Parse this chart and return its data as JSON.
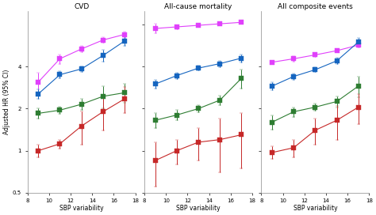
{
  "panels": [
    {
      "title": "CVD",
      "series": [
        {
          "color": "#e040fb",
          "x": [
            9,
            11,
            13,
            15,
            17
          ],
          "y": [
            3.1,
            4.55,
            5.35,
            6.2,
            6.8
          ],
          "yerr_lo": [
            0.5,
            0.35,
            0.25,
            0.3,
            0.35
          ],
          "yerr_hi": [
            0.5,
            0.35,
            0.25,
            0.3,
            0.35
          ]
        },
        {
          "color": "#1565c0",
          "x": [
            9,
            11,
            13,
            15,
            17
          ],
          "y": [
            2.55,
            3.5,
            3.85,
            4.8,
            6.1
          ],
          "yerr_lo": [
            0.2,
            0.2,
            0.18,
            0.45,
            0.45
          ],
          "yerr_hi": [
            0.2,
            0.2,
            0.18,
            0.45,
            0.45
          ]
        },
        {
          "color": "#2e7d32",
          "x": [
            9,
            11,
            13,
            15,
            17
          ],
          "y": [
            1.85,
            1.95,
            2.15,
            2.45,
            2.6
          ],
          "yerr_lo": [
            0.15,
            0.12,
            0.2,
            0.45,
            0.4
          ],
          "yerr_hi": [
            0.15,
            0.12,
            0.2,
            0.45,
            0.4
          ]
        },
        {
          "color": "#c62828",
          "x": [
            9,
            11,
            13,
            15,
            17
          ],
          "y": [
            1.0,
            1.12,
            1.5,
            1.9,
            2.35
          ],
          "yerr_lo": [
            0.1,
            0.08,
            0.4,
            0.5,
            0.5
          ],
          "yerr_hi": [
            0.1,
            0.08,
            0.4,
            0.5,
            0.5
          ]
        }
      ]
    },
    {
      "title": "All-cause mortality",
      "series": [
        {
          "color": "#e040fb",
          "x": [
            9,
            11,
            13,
            15,
            17
          ],
          "y": [
            7.5,
            7.7,
            7.9,
            8.1,
            8.3
          ],
          "yerr_lo": [
            0.6,
            0.25,
            0.18,
            0.18,
            0.2
          ],
          "yerr_hi": [
            0.6,
            0.25,
            0.18,
            0.18,
            0.2
          ]
        },
        {
          "color": "#1565c0",
          "x": [
            9,
            11,
            13,
            15,
            17
          ],
          "y": [
            3.0,
            3.45,
            3.9,
            4.2,
            4.6
          ],
          "yerr_lo": [
            0.2,
            0.18,
            0.15,
            0.22,
            0.3
          ],
          "yerr_hi": [
            0.2,
            0.18,
            0.15,
            0.22,
            0.3
          ]
        },
        {
          "color": "#2e7d32",
          "x": [
            9,
            11,
            13,
            15,
            17
          ],
          "y": [
            1.65,
            1.8,
            2.0,
            2.3,
            3.3
          ],
          "yerr_lo": [
            0.2,
            0.15,
            0.12,
            0.18,
            0.5
          ],
          "yerr_hi": [
            0.2,
            0.15,
            0.12,
            0.18,
            0.5
          ]
        },
        {
          "color": "#c62828",
          "x": [
            9,
            11,
            13,
            15,
            17
          ],
          "y": [
            0.85,
            1.0,
            1.15,
            1.2,
            1.3
          ],
          "yerr_lo": [
            0.3,
            0.2,
            0.3,
            0.5,
            0.55
          ],
          "yerr_hi": [
            0.3,
            0.2,
            0.3,
            0.5,
            0.55
          ]
        }
      ]
    },
    {
      "title": "All composite events",
      "series": [
        {
          "color": "#e040fb",
          "x": [
            9,
            11,
            13,
            15,
            17
          ],
          "y": [
            4.3,
            4.55,
            4.85,
            5.2,
            5.7
          ],
          "yerr_lo": [
            0.12,
            0.2,
            0.15,
            0.15,
            0.2
          ],
          "yerr_hi": [
            0.12,
            0.2,
            0.15,
            0.15,
            0.2
          ]
        },
        {
          "color": "#1565c0",
          "x": [
            9,
            11,
            13,
            15,
            17
          ],
          "y": [
            2.9,
            3.4,
            3.8,
            4.4,
            6.0
          ],
          "yerr_lo": [
            0.18,
            0.18,
            0.15,
            0.25,
            0.45
          ],
          "yerr_hi": [
            0.18,
            0.18,
            0.15,
            0.25,
            0.45
          ]
        },
        {
          "color": "#2e7d32",
          "x": [
            9,
            11,
            13,
            15,
            17
          ],
          "y": [
            1.6,
            1.9,
            2.05,
            2.25,
            2.9
          ],
          "yerr_lo": [
            0.18,
            0.15,
            0.12,
            0.2,
            0.5
          ],
          "yerr_hi": [
            0.18,
            0.15,
            0.12,
            0.2,
            0.5
          ]
        },
        {
          "color": "#c62828",
          "x": [
            9,
            11,
            13,
            15,
            17
          ],
          "y": [
            0.97,
            1.05,
            1.4,
            1.65,
            2.05
          ],
          "yerr_lo": [
            0.1,
            0.15,
            0.3,
            0.45,
            0.5
          ],
          "yerr_hi": [
            0.1,
            0.15,
            0.3,
            0.45,
            0.5
          ]
        }
      ]
    }
  ],
  "xlabel": "SBP variability",
  "ylabel": "Adjusted HR (95% CI)",
  "xlim": [
    8,
    18
  ],
  "xticks": [
    8,
    10,
    12,
    14,
    16,
    18
  ],
  "ylim_log": [
    0.5,
    10
  ],
  "yticks_left": [
    0.5,
    1,
    2,
    4
  ],
  "yticks_mid": [
    0.5,
    1,
    2,
    4,
    8
  ],
  "yticks_right": [
    0.5,
    1,
    2,
    4
  ],
  "marker": "s",
  "markersize": 4,
  "linewidth": 0.8,
  "capsize": 1.5,
  "elinewidth": 0.7,
  "title_fontsize": 6.5,
  "label_fontsize": 5.5,
  "tick_fontsize": 5,
  "bg_color": "#ffffff"
}
